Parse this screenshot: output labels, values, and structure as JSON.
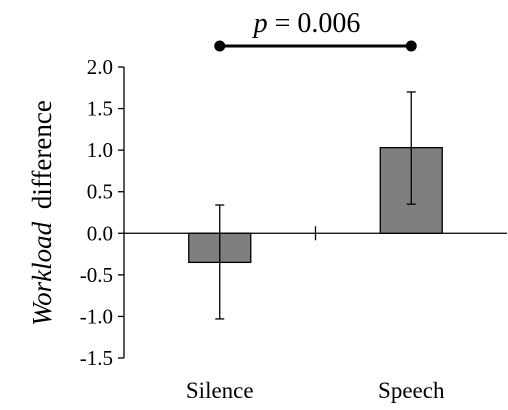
{
  "chart_data": {
    "type": "bar",
    "title": "",
    "categories": [
      "Silence",
      "Speech"
    ],
    "series": [
      {
        "values": [
          -0.35,
          1.03
        ],
        "error_low": [
          -1.03,
          0.35
        ],
        "error_high": [
          0.34,
          1.7
        ],
        "color": "#7f7f7f"
      }
    ],
    "ylabel_italic": "Workload",
    "ylabel_rest": "difference",
    "xlabel": "",
    "ylim": [
      -1.5,
      2.0
    ],
    "yticks": [
      "2.0",
      "1.5",
      "1.0",
      "0.5",
      "0.0",
      "-0.5",
      "-1.0",
      "-1.5"
    ],
    "ytick_values": [
      2.0,
      1.5,
      1.0,
      0.5,
      0.0,
      -0.5,
      -1.0,
      -1.5
    ],
    "grid": false,
    "annotation": {
      "p_symbol": "p",
      "p_rest": " = 0.006"
    },
    "colors": {
      "bar": "#7f7f7f",
      "bar_edge": "#000000",
      "axis": "#000000"
    }
  }
}
